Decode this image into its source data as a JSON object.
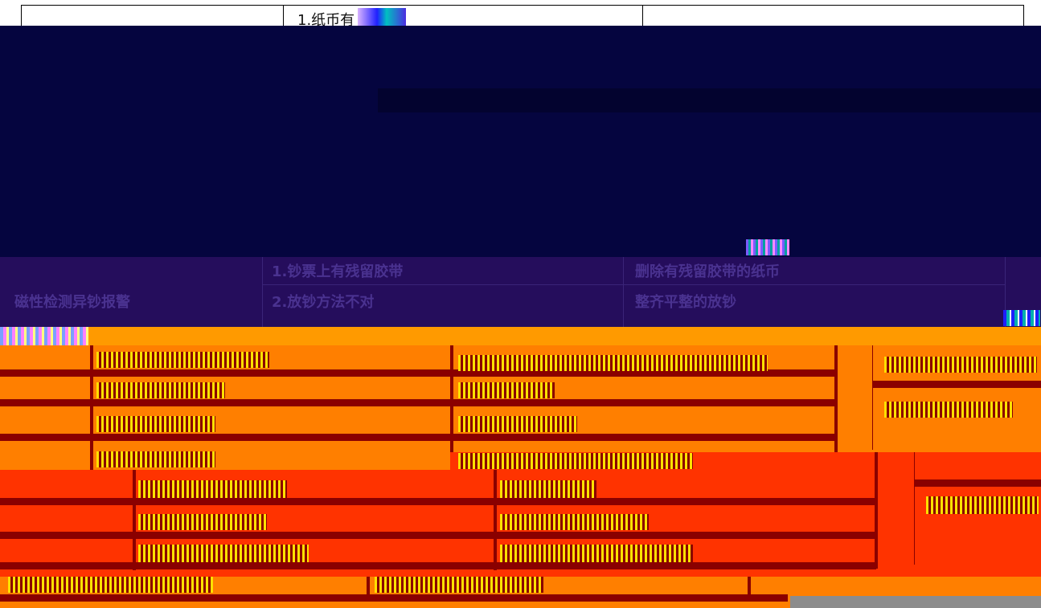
{
  "document": {
    "top_row": {
      "visible_text": "1.纸币有"
    },
    "navy_table": {
      "rows": [
        {
          "detail": "1.钞票上有残留胶带",
          "remedy": "删除有残留胶带的纸币"
        },
        {
          "category": "磁性检测异钞报警",
          "detail": "2.放钞方法不对",
          "remedy": "整齐平整的放钞"
        }
      ]
    }
  },
  "colors": {
    "navy": "#05053f",
    "purple": "#250d5c",
    "amber": "#ff9a00",
    "orange": "#ff7f00",
    "orange_red": "#ff3300",
    "dark_red": "#8a0000",
    "yellow": "#ffe100",
    "gray": "#8c8c8c"
  }
}
